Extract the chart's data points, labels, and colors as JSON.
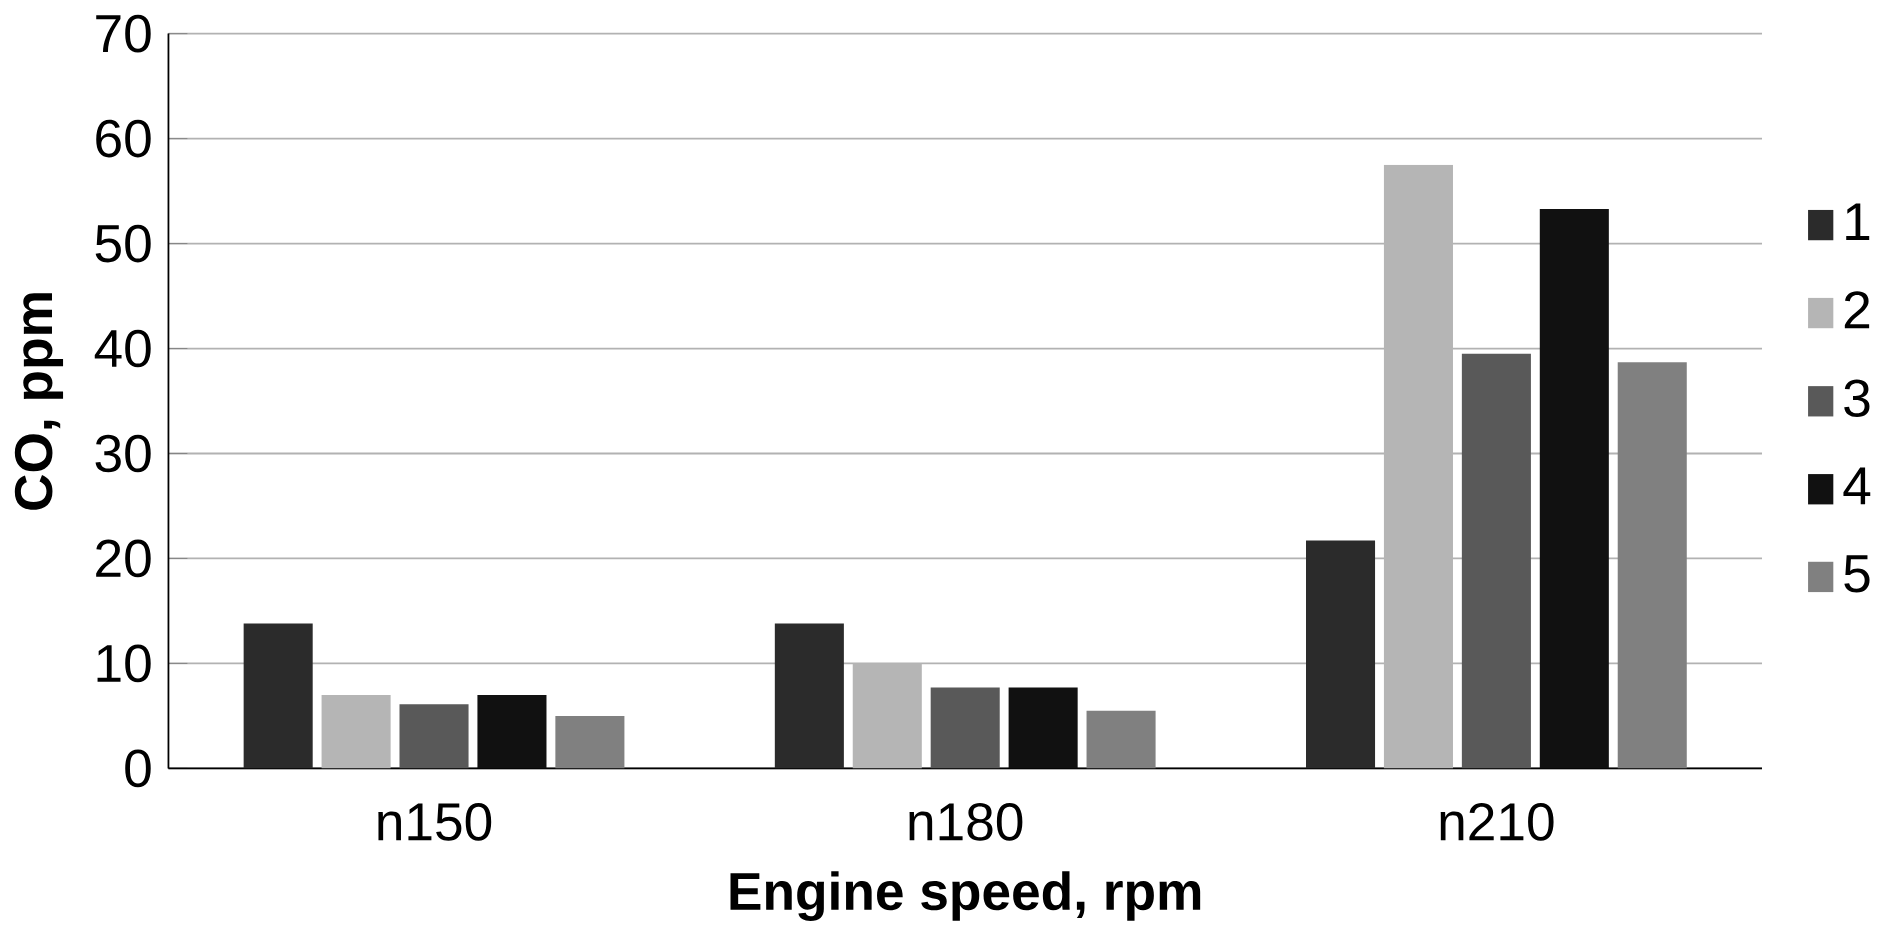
{
  "chart_data": {
    "type": "bar",
    "xlabel": "Engine speed, rpm",
    "ylabel": "CO, ppm",
    "categories": [
      "n150",
      "n180",
      "n210"
    ],
    "series": [
      {
        "name": "1",
        "color": "#2b2b2b",
        "values": [
          13.8,
          13.8,
          21.7
        ]
      },
      {
        "name": "2",
        "color": "#b5b5b5",
        "values": [
          7,
          10,
          57.5
        ]
      },
      {
        "name": "3",
        "color": "#595959",
        "values": [
          6.1,
          7.7,
          39.5
        ]
      },
      {
        "name": "4",
        "color": "#111111",
        "values": [
          7,
          7.7,
          53.3
        ]
      },
      {
        "name": "5",
        "color": "#808080",
        "values": [
          5,
          5.5,
          38.7
        ]
      }
    ],
    "ylim": [
      0,
      70
    ],
    "yticks": [
      0,
      10,
      20,
      30,
      40,
      50,
      60,
      70
    ],
    "grid": "y",
    "legend": "right"
  }
}
